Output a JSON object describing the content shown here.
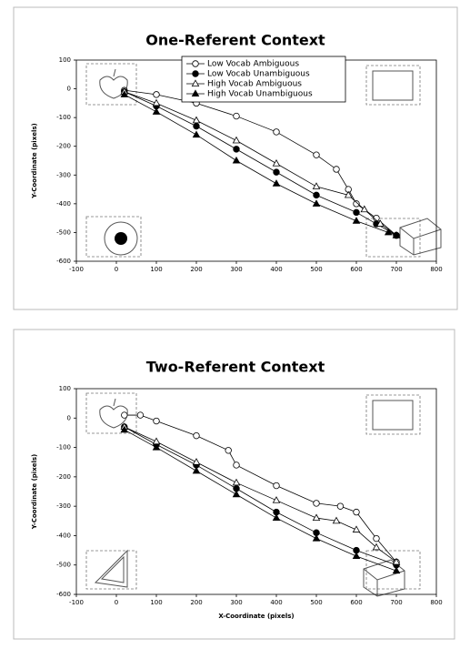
{
  "chart_data": [
    {
      "type": "line",
      "title": "One-Referent Context",
      "ylabel": "Y-Coordinate (pixels)",
      "xlim": [
        -100,
        800
      ],
      "xticks": [
        -100,
        0,
        100,
        200,
        300,
        400,
        500,
        600,
        700,
        800
      ],
      "ylim": [
        -600,
        100
      ],
      "yticks": [
        -600,
        -500,
        -400,
        -300,
        -200,
        -100,
        0,
        100
      ],
      "legend": "top",
      "series": [
        {
          "name": "Low Vocab Ambiguous",
          "color": "#000000",
          "marker": "circle-open",
          "x": [
            20,
            100,
            200,
            300,
            400,
            500,
            550,
            580,
            600,
            650,
            700
          ],
          "values": [
            -5,
            -20,
            -50,
            -95,
            -150,
            -230,
            -280,
            -350,
            -400,
            -450,
            -510
          ]
        },
        {
          "name": "Low Vocab Unambiguous",
          "color": "#000000",
          "marker": "circle-filled",
          "x": [
            20,
            100,
            200,
            300,
            400,
            500,
            600,
            650,
            700
          ],
          "values": [
            -10,
            -60,
            -130,
            -210,
            -290,
            -370,
            -430,
            -470,
            -510
          ]
        },
        {
          "name": "High Vocab Ambiguous",
          "color": "#000000",
          "marker": "triangle-open",
          "x": [
            20,
            100,
            200,
            300,
            400,
            500,
            580,
            620,
            660,
            700
          ],
          "values": [
            -10,
            -50,
            -110,
            -180,
            -260,
            -340,
            -370,
            -420,
            -470,
            -510
          ]
        },
        {
          "name": "High Vocab Unambiguous",
          "color": "#000000",
          "marker": "triangle-filled",
          "x": [
            20,
            100,
            200,
            300,
            400,
            500,
            600,
            680,
            700
          ],
          "values": [
            -20,
            -80,
            -160,
            -250,
            -330,
            -400,
            -460,
            -500,
            -510
          ]
        }
      ]
    },
    {
      "type": "line",
      "title": "Two-Referent Context",
      "ylabel": "Y-Coordinate (pixels)",
      "xlabel": "X-Coordinate (pixels)",
      "xlim": [
        -100,
        800
      ],
      "xticks": [
        -100,
        0,
        100,
        200,
        300,
        400,
        500,
        600,
        700,
        800
      ],
      "ylim": [
        -600,
        100
      ],
      "yticks": [
        -600,
        -500,
        -400,
        -300,
        -200,
        -100,
        0,
        100
      ],
      "series": [
        {
          "color": "#000000",
          "marker": "circle-open",
          "x": [
            20,
            60,
            100,
            200,
            280,
            300,
            400,
            500,
            560,
            600,
            650,
            700
          ],
          "values": [
            10,
            10,
            -10,
            -60,
            -110,
            -160,
            -230,
            -290,
            -300,
            -320,
            -410,
            -490
          ]
        },
        {
          "color": "#000000",
          "marker": "circle-filled",
          "x": [
            20,
            100,
            200,
            300,
            400,
            500,
            600,
            700
          ],
          "values": [
            -30,
            -90,
            -160,
            -240,
            -320,
            -390,
            -450,
            -500
          ]
        },
        {
          "color": "#000000",
          "marker": "triangle-open",
          "x": [
            20,
            100,
            200,
            300,
            400,
            500,
            550,
            600,
            650,
            700
          ],
          "values": [
            -30,
            -80,
            -150,
            -220,
            -280,
            -340,
            -350,
            -380,
            -440,
            -490
          ]
        },
        {
          "color": "#000000",
          "marker": "triangle-filled",
          "x": [
            20,
            100,
            200,
            300,
            400,
            500,
            600,
            700
          ],
          "values": [
            -40,
            -100,
            -180,
            -260,
            -340,
            -410,
            -470,
            -520
          ]
        }
      ]
    }
  ]
}
